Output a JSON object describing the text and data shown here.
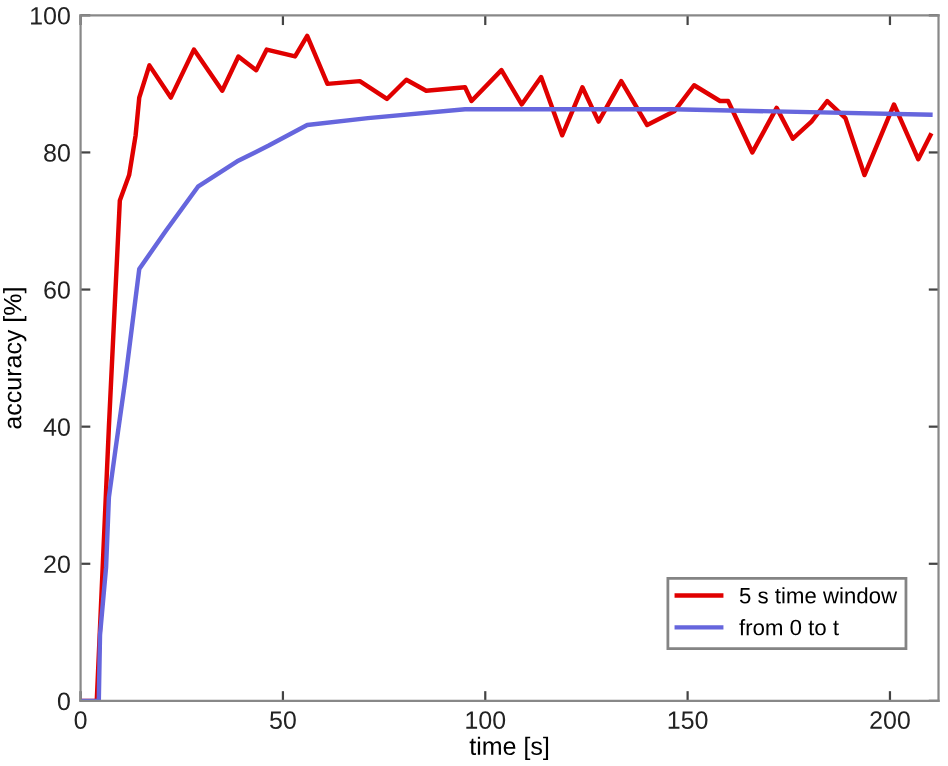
{
  "chart_data": {
    "type": "line",
    "xlabel": "time [s]",
    "ylabel": "accuracy [%]",
    "xlim": [
      0,
      212
    ],
    "ylim": [
      0,
      100
    ],
    "xticks": [
      0,
      50,
      100,
      150,
      200
    ],
    "yticks": [
      0,
      20,
      40,
      60,
      80,
      100
    ],
    "grid": false,
    "legend": "bottom right",
    "marker": "none",
    "line_style": "solid",
    "series": [
      {
        "name": "5 s time window",
        "color": "#e00000",
        "x": [
          0,
          4,
          7,
          9.7,
          12,
          13.6,
          14.5,
          17,
          22.3,
          28,
          35,
          39,
          43.4,
          46,
          53,
          56,
          61,
          69,
          75.7,
          80.5,
          85.4,
          95,
          96.6,
          104,
          109,
          113.8,
          119,
          124,
          128,
          133.6,
          140,
          146.7,
          151.6,
          158,
          160,
          166,
          172,
          176,
          180.6,
          184.5,
          189,
          193.7,
          201,
          207,
          210
        ],
        "values": [
          0,
          0,
          40,
          73,
          76.7,
          82.5,
          88,
          92.7,
          88,
          95,
          89,
          94,
          92,
          95,
          94,
          97,
          90,
          90.4,
          87.8,
          90.6,
          89,
          89.5,
          87.5,
          92,
          87,
          91,
          82.5,
          89.5,
          84.5,
          90.4,
          84,
          86,
          89.8,
          87.5,
          87.5,
          80,
          86.5,
          82,
          84.5,
          87.5,
          85,
          76.7,
          87,
          79,
          82.5
        ]
      },
      {
        "name": "from 0 to t",
        "color": "#6666dd",
        "x": [
          0,
          4.5,
          4.8,
          6.3,
          7,
          8.7,
          11,
          14.5,
          21,
          29,
          38.7,
          46.5,
          56,
          71,
          95,
          146.6,
          210
        ],
        "values": [
          0,
          0,
          9.6,
          19.5,
          29.7,
          37,
          46.6,
          63,
          68.5,
          75,
          78.7,
          81,
          84,
          85,
          86.3,
          86.3,
          85.5
        ]
      }
    ]
  }
}
